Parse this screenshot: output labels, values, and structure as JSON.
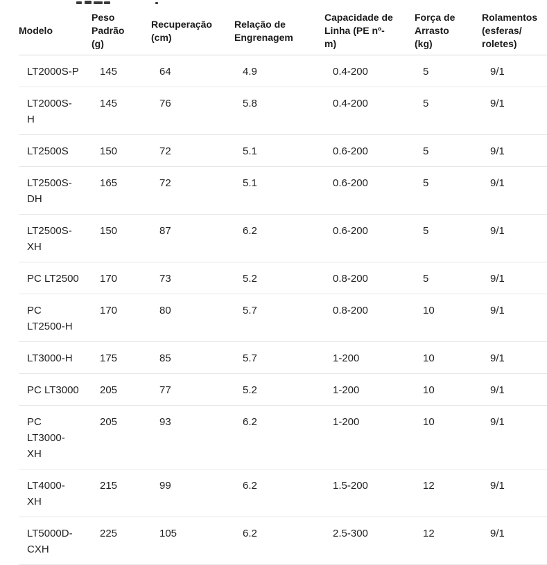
{
  "colors": {
    "background": "#ffffff",
    "text": "#222222",
    "header_text": "#1b1b1b",
    "header_border": "#d9d9d9",
    "row_border": "#e7e7e7"
  },
  "chart_data": {
    "type": "table",
    "title": "",
    "columns": [
      "Modelo",
      "Peso\nPadrão\n(g)",
      "Recuperação\n(cm)",
      "Relação de\nEngrenagem",
      "Capacidade de\nLinha (PE nº-\nm)",
      "Força de\nArrasto\n(kg)",
      "Rolamentos\n(esferas/\nroletes)"
    ],
    "rows": [
      [
        "LT2000S-P",
        "145",
        "64",
        "4.9",
        "0.4-200",
        "5",
        "9/1"
      ],
      [
        "LT2000S-\nH",
        "145",
        "76",
        "5.8",
        "0.4-200",
        "5",
        "9/1"
      ],
      [
        "LT2500S",
        "150",
        "72",
        "5.1",
        "0.6-200",
        "5",
        "9/1"
      ],
      [
        "LT2500S-\nDH",
        "165",
        "72",
        "5.1",
        "0.6-200",
        "5",
        "9/1"
      ],
      [
        "LT2500S-\nXH",
        "150",
        "87",
        "6.2",
        "0.6-200",
        "5",
        "9/1"
      ],
      [
        "PC LT2500",
        "170",
        "73",
        "5.2",
        "0.8-200",
        "5",
        "9/1"
      ],
      [
        "PC\nLT2500-H",
        "170",
        "80",
        "5.7",
        "0.8-200",
        "10",
        "9/1"
      ],
      [
        "LT3000-H",
        "175",
        "85",
        "5.7",
        "1-200",
        "10",
        "9/1"
      ],
      [
        "PC LT3000",
        "205",
        "77",
        "5.2",
        "1-200",
        "10",
        "9/1"
      ],
      [
        "PC\nLT3000-\nXH",
        "205",
        "93",
        "6.2",
        "1-200",
        "10",
        "9/1"
      ],
      [
        "LT4000-\nXH",
        "215",
        "99",
        "6.2",
        "1.5-200",
        "12",
        "9/1"
      ],
      [
        "LT5000D-\nCXH",
        "225",
        "105",
        "6.2",
        "2.5-300",
        "12",
        "9/1"
      ]
    ]
  }
}
